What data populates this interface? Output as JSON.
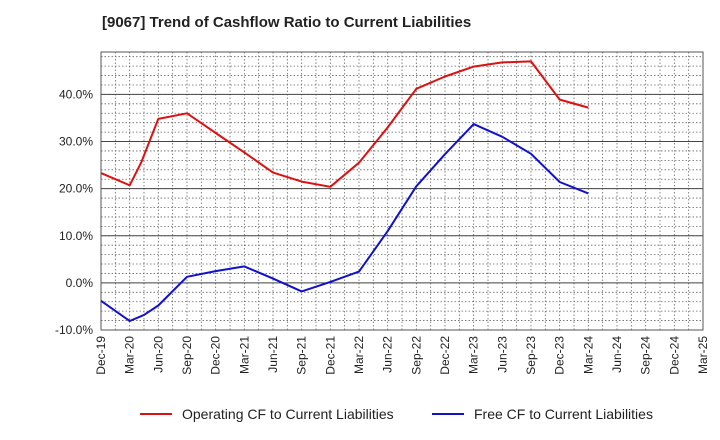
{
  "chart_data": {
    "type": "line",
    "title": "[9067]  Trend of Cashflow Ratio to Current Liabilities",
    "xlabel": "",
    "ylabel": "",
    "categories": [
      "Dec-19",
      "Mar-20",
      "Jun-20",
      "Sep-20",
      "Dec-20",
      "Mar-21",
      "Jun-21",
      "Sep-21",
      "Dec-21",
      "Mar-22",
      "Jun-22",
      "Sep-22",
      "Dec-22",
      "Mar-23",
      "Jun-23",
      "Sep-23",
      "Dec-23",
      "Mar-24",
      "Jun-24",
      "Sep-24",
      "Dec-24",
      "Mar-25"
    ],
    "y_ticks": [
      -10,
      0,
      10,
      20,
      30,
      40
    ],
    "y_tick_labels": [
      "-10.0%",
      "0.0%",
      "10.0%",
      "20.0%",
      "30.0%",
      "40.0%"
    ],
    "ylim": [
      -10,
      49
    ],
    "grid": true,
    "legend_position": "bottom",
    "series": [
      {
        "name": "Operating CF to Current Liabilities",
        "color": "#dd1111",
        "points": [
          [
            0,
            23.3
          ],
          [
            1,
            20.7
          ],
          [
            1.4,
            25.5
          ],
          [
            2,
            34.8
          ],
          [
            3,
            36.0
          ],
          [
            4,
            31.8
          ],
          [
            5,
            27.7
          ],
          [
            6,
            23.4
          ],
          [
            7,
            21.5
          ],
          [
            8,
            20.4
          ],
          [
            9,
            25.5
          ],
          [
            10,
            33.0
          ],
          [
            11,
            41.2
          ],
          [
            12,
            43.8
          ],
          [
            13,
            45.9
          ],
          [
            14,
            46.8
          ],
          [
            15,
            47.0
          ],
          [
            16,
            38.9
          ],
          [
            17,
            37.2
          ]
        ]
      },
      {
        "name": "Free CF to Current Liabilities",
        "color": "#1111cc",
        "points": [
          [
            0,
            -3.8
          ],
          [
            1,
            -8.1
          ],
          [
            1.5,
            -6.8
          ],
          [
            2,
            -4.8
          ],
          [
            3,
            1.3
          ],
          [
            4,
            2.5
          ],
          [
            5,
            3.5
          ],
          [
            6,
            0.9
          ],
          [
            7,
            -1.8
          ],
          [
            8,
            0.2
          ],
          [
            9,
            2.4
          ],
          [
            10,
            11.0
          ],
          [
            11,
            20.5
          ],
          [
            12,
            27.3
          ],
          [
            13,
            33.7
          ],
          [
            14,
            31.0
          ],
          [
            15,
            27.4
          ],
          [
            16,
            21.4
          ],
          [
            17,
            19.0
          ]
        ]
      }
    ]
  }
}
